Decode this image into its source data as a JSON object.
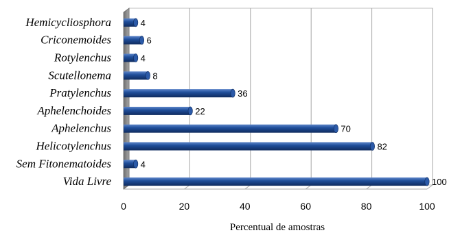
{
  "chart_data": {
    "type": "bar",
    "orientation": "horizontal",
    "categories": [
      "Hemicycliosphora",
      "Criconemoides",
      "Rotylenchus",
      "Scutellonema",
      "Pratylenchus",
      "Aphelenchoides",
      "Aphelenchus",
      "Helicotylenchus",
      "Sem Fitonematoides",
      "Vida Livre"
    ],
    "values": [
      4,
      6,
      4,
      8,
      36,
      22,
      70,
      82,
      4,
      100
    ],
    "xlabel": "Percentual de amostras",
    "ylabel": "",
    "xlim": [
      0,
      100
    ],
    "xticks": [
      0,
      20,
      40,
      60,
      80,
      100
    ],
    "grid": true,
    "legend": "none",
    "bar_color": "#1F4E9A",
    "wall_color": "#8C8C8C"
  }
}
